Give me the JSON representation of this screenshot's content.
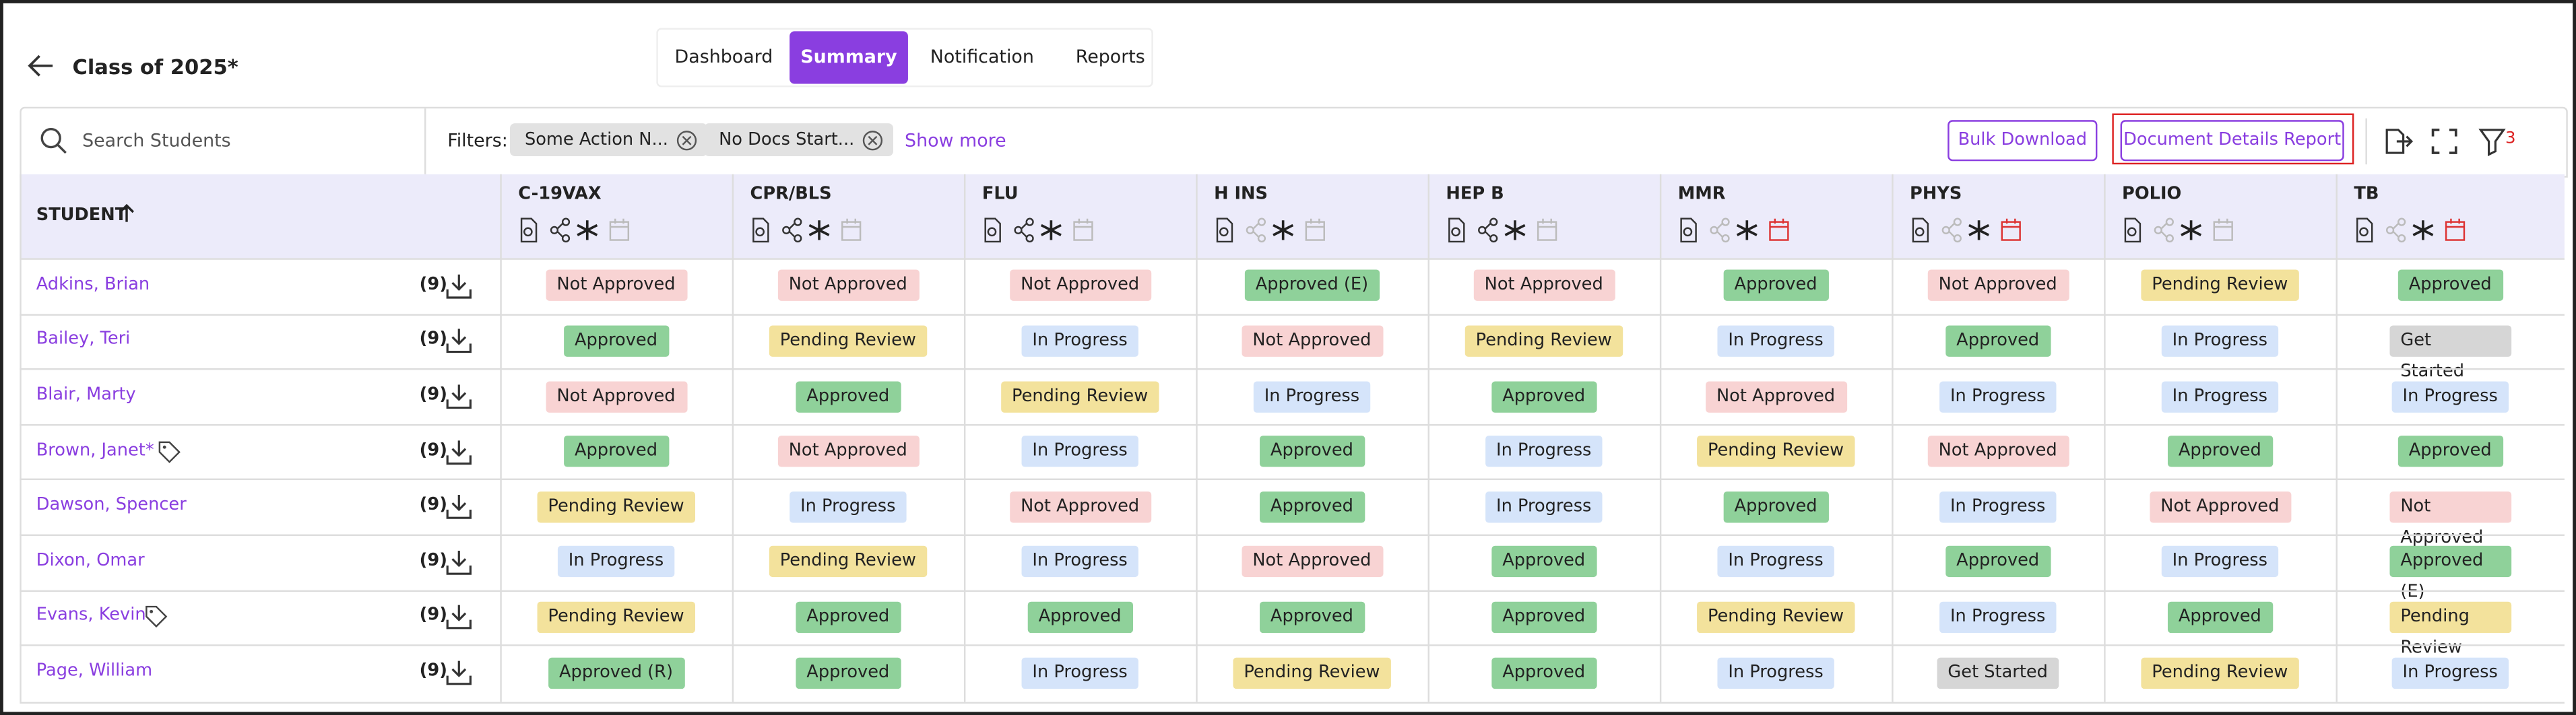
{
  "header": {
    "title": "Class of 2025*",
    "tabs": [
      "Dashboard",
      "Summary",
      "Notification",
      "Reports"
    ],
    "active_tab": 1
  },
  "toolbar": {
    "search_placeholder": "Search Students",
    "filters_label": "Filters:",
    "chips": [
      "Some Action N...",
      "No Docs Start..."
    ],
    "show_more": "Show more",
    "bulk_download": "Bulk Download",
    "document_details_report": "Document Details Report",
    "filter_count": "3"
  },
  "table": {
    "student_header": "STUDENT",
    "columns": [
      "C-19VAX",
      "CPR/BLS",
      "FLU",
      "H INS",
      "HEP B",
      "MMR",
      "PHYS",
      "POLIO",
      "TB"
    ],
    "status_styles": {
      "Not Approved": "#f8d3d3",
      "Approved": "#8fd19a",
      "Approved (E)": "#8fd19a",
      "Approved (R)": "#8fd19a",
      "Pending Review": "#f3e29c",
      "In Progress": "#d5e4fa",
      "Get Started": "#d6d6d6"
    },
    "rows": [
      {
        "name": "Adkins, Brian",
        "count": "(9)",
        "cells": [
          "Not Approved",
          "Not Approved",
          "Not Approved",
          "Approved (E)",
          "Not Approved",
          "Approved",
          "Not Approved",
          "Pending Review",
          "Approved"
        ]
      },
      {
        "name": "Bailey, Teri",
        "count": "(9)",
        "cells": [
          "Approved",
          "Pending Review",
          "In Progress",
          "Not Approved",
          "Pending Review",
          "In Progress",
          "Approved",
          "In Progress",
          "Get Started"
        ]
      },
      {
        "name": "Blair, Marty",
        "count": "(9)",
        "cells": [
          "Not Approved",
          "Approved",
          "Pending Review",
          "In Progress",
          "Approved",
          "Not Approved",
          "In Progress",
          "In Progress",
          "In Progress"
        ]
      },
      {
        "name": "Brown, Janet*",
        "count": "(9)",
        "cells": [
          "Approved",
          "Not Approved",
          "In Progress",
          "Approved",
          "In Progress",
          "Pending Review",
          "Not Approved",
          "Approved",
          "Approved"
        ]
      },
      {
        "name": "Dawson, Spencer",
        "count": "(9)",
        "cells": [
          "Pending Review",
          "In Progress",
          "Not Approved",
          "Approved",
          "In Progress",
          "Approved",
          "In Progress",
          "Not Approved",
          "Not Approved"
        ]
      },
      {
        "name": "Dixon, Omar",
        "count": "(9)",
        "cells": [
          "In Progress",
          "Pending Review",
          "In Progress",
          "Not Approved",
          "Approved",
          "In Progress",
          "Approved",
          "In Progress",
          "Approved (E)"
        ]
      },
      {
        "name": "Evans, Kevin",
        "count": "(9)",
        "cells": [
          "Pending Review",
          "Approved",
          "Approved",
          "Approved",
          "Approved",
          "Pending Review",
          "In Progress",
          "Approved",
          "Pending Review"
        ]
      },
      {
        "name": "Page, William",
        "count": "(9)",
        "cells": [
          "Approved (R)",
          "Approved",
          "In Progress",
          "Pending Review",
          "Approved",
          "In Progress",
          "Get Started",
          "Pending Review",
          "In Progress"
        ]
      }
    ]
  }
}
